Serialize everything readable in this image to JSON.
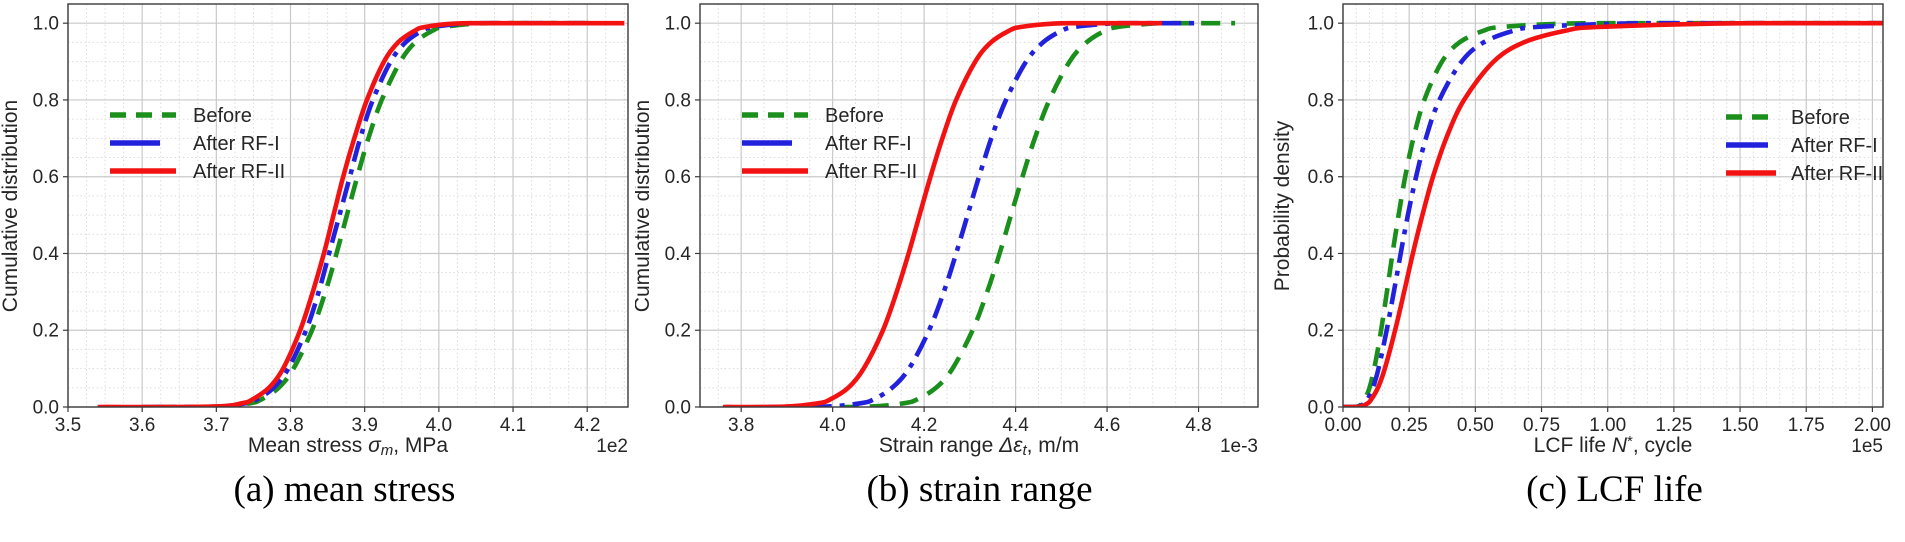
{
  "figure": {
    "background": "#ffffff",
    "text_color": "#262626",
    "frame_color": "#3a3a3a",
    "grid_major_color": "#c9c9c9",
    "grid_minor_color": "#dbdbdb"
  },
  "chart_data": [
    {
      "type": "line",
      "panel_id": "a",
      "caption": "(a) mean stress",
      "ylabel": "Cumulative distribution",
      "xlabel_parts": {
        "prefix": "Mean stress ",
        "symbol": "σ",
        "sub": "m",
        "sup": "",
        "suffix": ", MPa"
      },
      "offset_label": "1e2",
      "xlim": [
        3.5,
        4.255
      ],
      "ylim": [
        0,
        1.05
      ],
      "xtick_values": [
        3.5,
        3.6,
        3.7,
        3.8,
        3.9,
        4.0,
        4.1,
        4.2
      ],
      "xtick_labels": [
        "3.5",
        "3.6",
        "3.7",
        "3.8",
        "3.9",
        "4.0",
        "4.1",
        "4.2"
      ],
      "ytick_values": [
        0,
        0.2,
        0.4,
        0.6,
        0.8,
        1.0
      ],
      "ytick_labels": [
        "0.0",
        "0.2",
        "0.4",
        "0.6",
        "0.8",
        "1.0"
      ],
      "x_minor_step": 0.025,
      "y_minor_step": 0.05,
      "grid": true,
      "legend_position": "center left inside",
      "series": [
        {
          "name": "Before",
          "color": "#1b8f1b",
          "style": "dashed",
          "points": [
            [
              3.62,
              0
            ],
            [
              3.703,
              0.001
            ],
            [
              3.746,
              0.01
            ],
            [
              3.761,
              0.02
            ],
            [
              3.784,
              0.05
            ],
            [
              3.804,
              0.1
            ],
            [
              3.829,
              0.2
            ],
            [
              3.847,
              0.3
            ],
            [
              3.862,
              0.4
            ],
            [
              3.876,
              0.5
            ],
            [
              3.89,
              0.6
            ],
            [
              3.905,
              0.7
            ],
            [
              3.923,
              0.8
            ],
            [
              3.948,
              0.9
            ],
            [
              3.968,
              0.95
            ],
            [
              3.991,
              0.98
            ],
            [
              4.006,
              0.99
            ],
            [
              4.049,
              0.999
            ],
            [
              4.1,
              1.0
            ],
            [
              4.21,
              1.0
            ]
          ]
        },
        {
          "name": "After RF-I",
          "color": "#2222dd",
          "style": "dashdot",
          "points": [
            [
              3.6,
              0
            ],
            [
              3.699,
              0.001
            ],
            [
              3.74,
              0.01
            ],
            [
              3.755,
              0.02
            ],
            [
              3.777,
              0.05
            ],
            [
              3.797,
              0.1
            ],
            [
              3.821,
              0.2
            ],
            [
              3.838,
              0.3
            ],
            [
              3.852,
              0.4
            ],
            [
              3.866,
              0.5
            ],
            [
              3.88,
              0.6
            ],
            [
              3.894,
              0.7
            ],
            [
              3.911,
              0.8
            ],
            [
              3.935,
              0.9
            ],
            [
              3.955,
              0.95
            ],
            [
              3.977,
              0.98
            ],
            [
              3.992,
              0.99
            ],
            [
              4.033,
              0.999
            ],
            [
              4.08,
              1.0
            ],
            [
              4.2,
              1.0
            ]
          ]
        },
        {
          "name": "After RF-II",
          "color": "#f21212",
          "style": "solid",
          "points": [
            [
              3.54,
              0
            ],
            [
              3.694,
              0.001
            ],
            [
              3.735,
              0.01
            ],
            [
              3.749,
              0.02
            ],
            [
              3.771,
              0.05
            ],
            [
              3.79,
              0.1
            ],
            [
              3.813,
              0.2
            ],
            [
              3.83,
              0.3
            ],
            [
              3.845,
              0.4
            ],
            [
              3.858,
              0.5
            ],
            [
              3.871,
              0.6
            ],
            [
              3.886,
              0.7
            ],
            [
              3.903,
              0.8
            ],
            [
              3.926,
              0.9
            ],
            [
              3.945,
              0.95
            ],
            [
              3.967,
              0.98
            ],
            [
              3.981,
              0.99
            ],
            [
              4.022,
              0.999
            ],
            [
              4.07,
              1.0
            ],
            [
              4.25,
              1.0
            ]
          ]
        }
      ]
    },
    {
      "type": "line",
      "panel_id": "b",
      "caption": "(b) strain range",
      "ylabel": "Cumulative distribution",
      "xlabel_parts": {
        "prefix": "Strain range ",
        "symbol": "Δε",
        "sub": "t",
        "sup": "",
        "suffix": ", m/m"
      },
      "offset_label": "1e-3",
      "xlim": [
        3.71,
        4.93
      ],
      "ylim": [
        0,
        1.05
      ],
      "xtick_values": [
        3.8,
        4.0,
        4.2,
        4.4,
        4.6,
        4.8
      ],
      "xtick_labels": [
        "3.8",
        "4.0",
        "4.2",
        "4.4",
        "4.6",
        "4.8"
      ],
      "ytick_values": [
        0,
        0.2,
        0.4,
        0.6,
        0.8,
        1.0
      ],
      "ytick_labels": [
        "0.0",
        "0.2",
        "0.4",
        "0.6",
        "0.8",
        "1.0"
      ],
      "x_minor_step": 0.05,
      "y_minor_step": 0.05,
      "grid": true,
      "legend_position": "center left inside",
      "series": [
        {
          "name": "Before",
          "color": "#1b8f1b",
          "style": "dashed",
          "points": [
            [
              3.95,
              0
            ],
            [
              4.081,
              0.001
            ],
            [
              4.157,
              0.01
            ],
            [
              4.185,
              0.02
            ],
            [
              4.226,
              0.05
            ],
            [
              4.262,
              0.1
            ],
            [
              4.306,
              0.2
            ],
            [
              4.338,
              0.3
            ],
            [
              4.365,
              0.4
            ],
            [
              4.39,
              0.5
            ],
            [
              4.415,
              0.6
            ],
            [
              4.442,
              0.7
            ],
            [
              4.474,
              0.8
            ],
            [
              4.518,
              0.9
            ],
            [
              4.555,
              0.95
            ],
            [
              4.595,
              0.98
            ],
            [
              4.623,
              0.99
            ],
            [
              4.699,
              0.999
            ],
            [
              4.75,
              1.0
            ],
            [
              4.88,
              1.0
            ]
          ]
        },
        {
          "name": "After RF-I",
          "color": "#2222dd",
          "style": "dashdot",
          "points": [
            [
              3.86,
              0
            ],
            [
              3.986,
              0.001
            ],
            [
              4.062,
              0.01
            ],
            [
              4.09,
              0.02
            ],
            [
              4.13,
              0.05
            ],
            [
              4.167,
              0.1
            ],
            [
              4.211,
              0.2
            ],
            [
              4.243,
              0.3
            ],
            [
              4.27,
              0.4
            ],
            [
              4.295,
              0.5
            ],
            [
              4.32,
              0.6
            ],
            [
              4.347,
              0.7
            ],
            [
              4.379,
              0.8
            ],
            [
              4.423,
              0.9
            ],
            [
              4.46,
              0.95
            ],
            [
              4.5,
              0.98
            ],
            [
              4.528,
              0.99
            ],
            [
              4.604,
              0.999
            ],
            [
              4.65,
              1.0
            ],
            [
              4.8,
              1.0
            ]
          ]
        },
        {
          "name": "After RF-II",
          "color": "#f21212",
          "style": "solid",
          "points": [
            [
              3.76,
              0
            ],
            [
              3.896,
              0.001
            ],
            [
              3.969,
              0.01
            ],
            [
              3.995,
              0.02
            ],
            [
              4.034,
              0.05
            ],
            [
              4.068,
              0.1
            ],
            [
              4.11,
              0.2
            ],
            [
              4.14,
              0.3
            ],
            [
              4.166,
              0.4
            ],
            [
              4.19,
              0.5
            ],
            [
              4.214,
              0.6
            ],
            [
              4.24,
              0.7
            ],
            [
              4.27,
              0.8
            ],
            [
              4.312,
              0.9
            ],
            [
              4.346,
              0.95
            ],
            [
              4.385,
              0.98
            ],
            [
              4.411,
              0.99
            ],
            [
              4.484,
              0.999
            ],
            [
              4.55,
              1.0
            ],
            [
              4.72,
              1.0
            ]
          ]
        }
      ]
    },
    {
      "type": "line",
      "panel_id": "c",
      "caption": "(c) LCF life",
      "ylabel": "Probability density",
      "xlabel_parts": {
        "prefix": "LCF life ",
        "symbol": "N",
        "sub": "",
        "sup": "*",
        "suffix": ", cycle"
      },
      "offset_label": "1e5",
      "xlim": [
        0,
        2.04
      ],
      "ylim": [
        0,
        1.05
      ],
      "xtick_values": [
        0,
        0.25,
        0.5,
        0.75,
        1.0,
        1.25,
        1.5,
        1.75,
        2.0
      ],
      "xtick_labels": [
        "0.00",
        "0.25",
        "0.50",
        "0.75",
        "1.00",
        "1.25",
        "1.50",
        "1.75",
        "2.00"
      ],
      "ytick_values": [
        0,
        0.2,
        0.4,
        0.6,
        0.8,
        1.0
      ],
      "ytick_labels": [
        "0.0",
        "0.2",
        "0.4",
        "0.6",
        "0.8",
        "1.0"
      ],
      "x_minor_step": 0.05,
      "y_minor_step": 0.05,
      "grid": true,
      "legend_position": "center right inside",
      "series": [
        {
          "name": "Before",
          "color": "#1b8f1b",
          "style": "dashed",
          "points": [
            [
              0.0,
              0
            ],
            [
              0.052,
              0.001
            ],
            [
              0.074,
              0.01
            ],
            [
              0.083,
              0.02
            ],
            [
              0.1,
              0.05
            ],
            [
              0.118,
              0.1
            ],
            [
              0.144,
              0.2
            ],
            [
              0.166,
              0.3
            ],
            [
              0.187,
              0.4
            ],
            [
              0.21,
              0.5
            ],
            [
              0.235,
              0.6
            ],
            [
              0.266,
              0.7
            ],
            [
              0.307,
              0.8
            ],
            [
              0.374,
              0.9
            ],
            [
              0.44,
              0.95
            ],
            [
              0.529,
              0.98
            ],
            [
              0.598,
              0.99
            ],
            [
              0.844,
              0.999
            ],
            [
              1.2,
              1.0
            ],
            [
              2.04,
              1.0
            ]
          ]
        },
        {
          "name": "After RF-I",
          "color": "#2222dd",
          "style": "dashdot",
          "points": [
            [
              0.0,
              0
            ],
            [
              0.057,
              0.001
            ],
            [
              0.082,
              0.01
            ],
            [
              0.093,
              0.02
            ],
            [
              0.113,
              0.05
            ],
            [
              0.134,
              0.1
            ],
            [
              0.165,
              0.2
            ],
            [
              0.192,
              0.3
            ],
            [
              0.218,
              0.4
            ],
            [
              0.245,
              0.5
            ],
            [
              0.276,
              0.6
            ],
            [
              0.313,
              0.7
            ],
            [
              0.364,
              0.8
            ],
            [
              0.448,
              0.9
            ],
            [
              0.531,
              0.95
            ],
            [
              0.643,
              0.98
            ],
            [
              0.731,
              0.99
            ],
            [
              1.047,
              0.999
            ],
            [
              1.4,
              1.0
            ],
            [
              2.04,
              1.0
            ]
          ]
        },
        {
          "name": "After RF-II",
          "color": "#f21212",
          "style": "solid",
          "points": [
            [
              0.0,
              0
            ],
            [
              0.064,
              0.001
            ],
            [
              0.094,
              0.01
            ],
            [
              0.107,
              0.02
            ],
            [
              0.132,
              0.05
            ],
            [
              0.158,
              0.1
            ],
            [
              0.197,
              0.2
            ],
            [
              0.231,
              0.3
            ],
            [
              0.264,
              0.4
            ],
            [
              0.3,
              0.5
            ],
            [
              0.34,
              0.6
            ],
            [
              0.39,
              0.7
            ],
            [
              0.457,
              0.8
            ],
            [
              0.569,
              0.9
            ],
            [
              0.683,
              0.95
            ],
            [
              0.838,
              0.98
            ],
            [
              0.96,
              0.99
            ],
            [
              1.406,
              0.999
            ],
            [
              1.7,
              1.0
            ],
            [
              2.04,
              1.0
            ]
          ]
        }
      ]
    }
  ]
}
